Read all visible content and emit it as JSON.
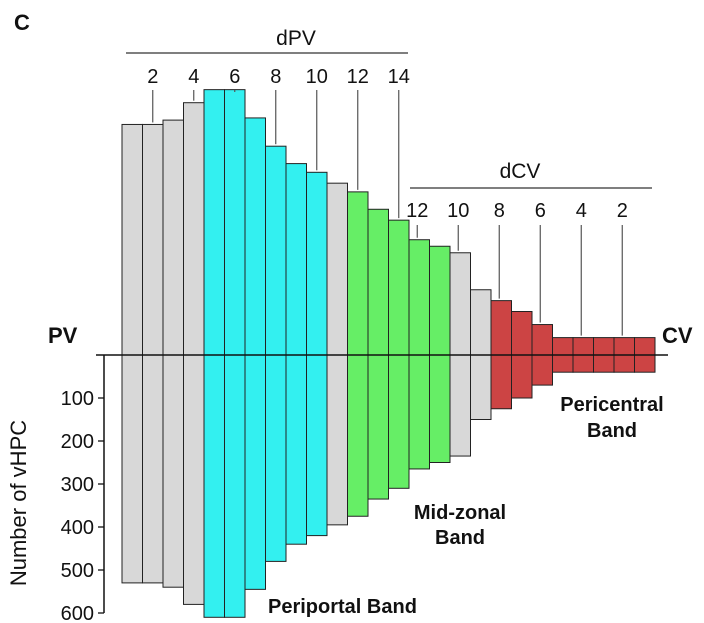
{
  "panel_label": "C",
  "chart_data": {
    "type": "bar",
    "ylabel": "Number of vHPC",
    "ylim": [
      0,
      600
    ],
    "y_ticks": [
      "100",
      "200",
      "300",
      "400",
      "500",
      "600"
    ],
    "left_label": "PV",
    "right_label": "CV",
    "groups": [
      {
        "name": "dPV",
        "tick_labels": [
          "2",
          "4",
          "6",
          "8",
          "10",
          "12",
          "14"
        ]
      },
      {
        "name": "dCV",
        "tick_labels": [
          "12",
          "10",
          "8",
          "6",
          "4",
          "2"
        ]
      }
    ],
    "band_labels": {
      "periportal": "Periportal Band",
      "midzonal_1": "Mid-zonal",
      "midzonal_2": "Band",
      "pericentral_1": "Pericentral",
      "pericentral_2": "Band"
    },
    "colors": {
      "gray": "#d8d8d8",
      "cyan": "#33f0f0",
      "green": "#66ee66",
      "red": "#cc4444"
    },
    "bars": [
      {
        "value": 530,
        "color": "gray"
      },
      {
        "value": 530,
        "color": "gray"
      },
      {
        "value": 540,
        "color": "gray"
      },
      {
        "value": 580,
        "color": "gray"
      },
      {
        "value": 610,
        "color": "cyan"
      },
      {
        "value": 610,
        "color": "cyan"
      },
      {
        "value": 545,
        "color": "cyan"
      },
      {
        "value": 480,
        "color": "cyan"
      },
      {
        "value": 440,
        "color": "cyan"
      },
      {
        "value": 420,
        "color": "cyan"
      },
      {
        "value": 395,
        "color": "gray"
      },
      {
        "value": 375,
        "color": "green"
      },
      {
        "value": 335,
        "color": "green"
      },
      {
        "value": 310,
        "color": "green"
      },
      {
        "value": 265,
        "color": "green"
      },
      {
        "value": 250,
        "color": "green"
      },
      {
        "value": 235,
        "color": "gray"
      },
      {
        "value": 150,
        "color": "gray"
      },
      {
        "value": 125,
        "color": "red"
      },
      {
        "value": 100,
        "color": "red"
      },
      {
        "value": 70,
        "color": "red"
      },
      {
        "value": 40,
        "color": "red"
      },
      {
        "value": 40,
        "color": "red"
      },
      {
        "value": 40,
        "color": "red"
      },
      {
        "value": 40,
        "color": "red"
      },
      {
        "value": 40,
        "color": "red"
      }
    ]
  }
}
